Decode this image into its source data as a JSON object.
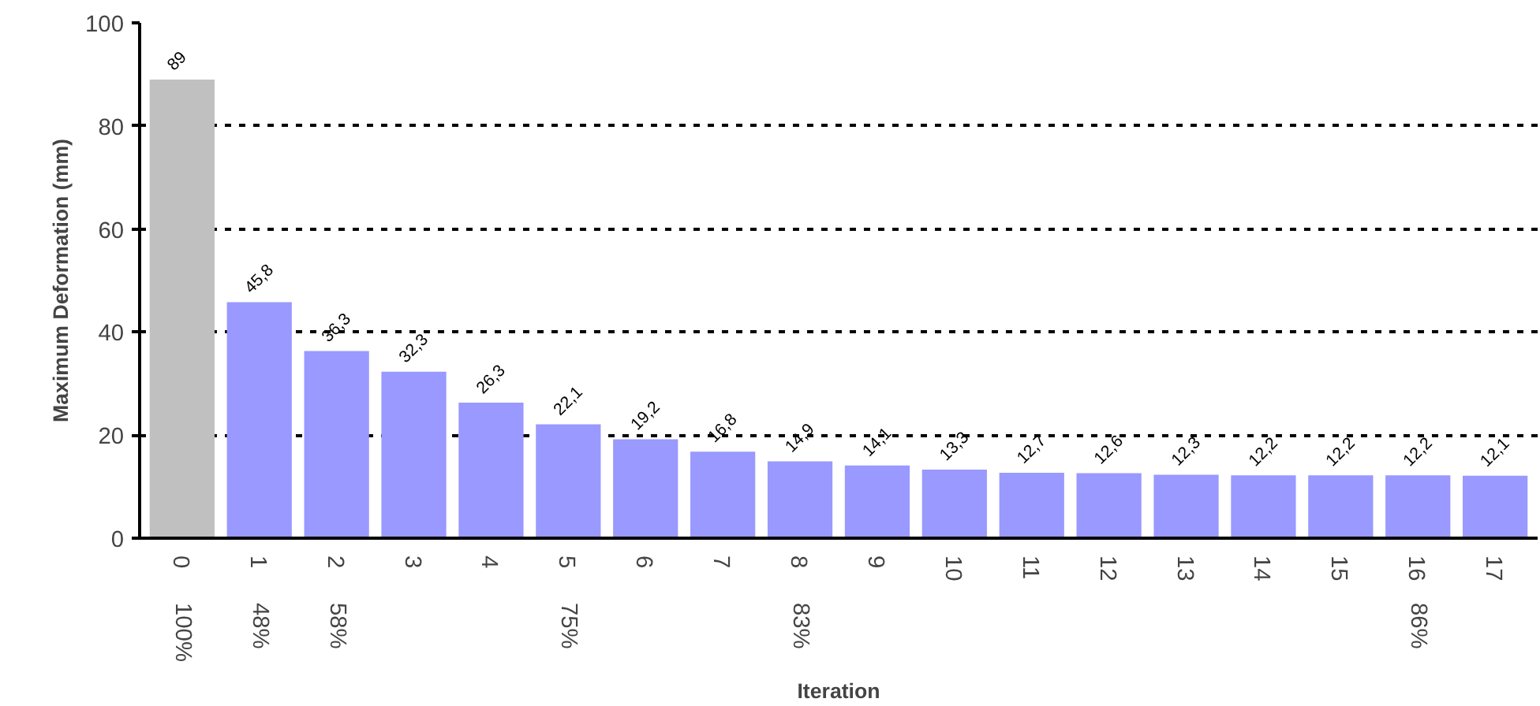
{
  "chart_data": {
    "type": "bar",
    "xlabel": "Iteration",
    "ylabel": "Maximum Deformation (mm)",
    "categories": [
      "0",
      "1",
      "2",
      "3",
      "4",
      "5",
      "6",
      "7",
      "8",
      "9",
      "10",
      "11",
      "12",
      "13",
      "14",
      "15",
      "16",
      "17"
    ],
    "values": [
      89,
      45.8,
      36.3,
      32.3,
      26.3,
      22.1,
      19.2,
      16.8,
      14.9,
      14.1,
      13.3,
      12.7,
      12.6,
      12.3,
      12.2,
      12.2,
      12.2,
      12.1
    ],
    "colors": [
      "#c0c0c0",
      "#9999ff",
      "#9999ff",
      "#9999ff",
      "#9999ff",
      "#9999ff",
      "#9999ff",
      "#9999ff",
      "#9999ff",
      "#9999ff",
      "#9999ff",
      "#9999ff",
      "#9999ff",
      "#9999ff",
      "#9999ff",
      "#9999ff",
      "#9999ff",
      "#9999ff"
    ],
    "value_labels": [
      "89",
      "45,8",
      "36,3",
      "32,3",
      "26,3",
      "22,1",
      "19,2",
      "16,8",
      "14,9",
      "14,1",
      "13,3",
      "12,7",
      "12,6",
      "12,3",
      "12,2",
      "12,2",
      "12,2",
      "12,1"
    ],
    "annotations": [
      "100%",
      "48%",
      "58%",
      "75%",
      "83%",
      "86%"
    ],
    "ylim": [
      0,
      100
    ],
    "yticks": [
      0,
      20,
      40,
      60,
      80,
      100
    ],
    "grid": "y"
  }
}
